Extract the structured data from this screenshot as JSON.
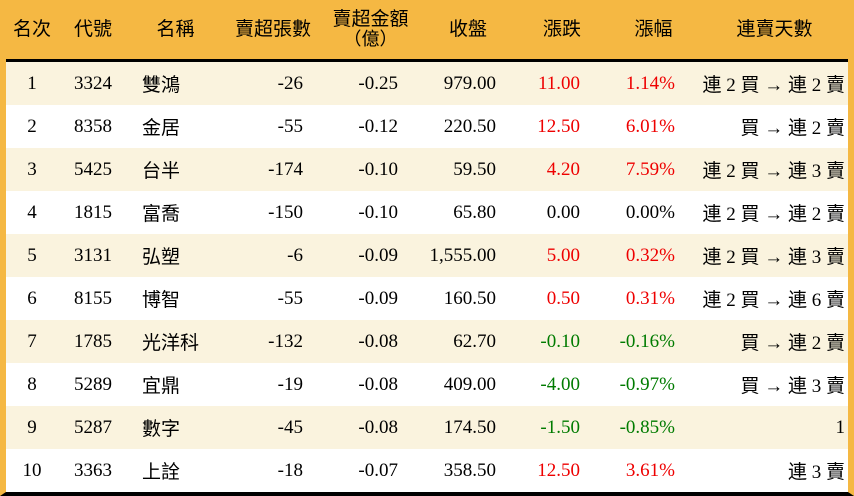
{
  "colors": {
    "header_bg": "#F5B843",
    "row_stripe": "#FAF3DE",
    "row_plain": "#FFFFFF",
    "up": "#EE0000",
    "down": "#007B00",
    "flat": "#000000",
    "rule": "#000000"
  },
  "chart_data": {
    "type": "table",
    "title": "",
    "columns": [
      {
        "label": "名次"
      },
      {
        "label": "代號"
      },
      {
        "label": "名稱"
      },
      {
        "label": "賣超張數"
      },
      {
        "label": "賣超金額",
        "label2": "（億）"
      },
      {
        "label": "收盤"
      },
      {
        "label": "漲跌"
      },
      {
        "label": "漲幅"
      },
      {
        "label": "連賣天數"
      }
    ],
    "rows": [
      {
        "rank": "1",
        "code": "3324",
        "name": "雙鴻",
        "sell_volume": "-26",
        "sell_amount": "-0.25",
        "close": "979.00",
        "change": "11.00",
        "change_pct": "1.14%",
        "streak": "連 2 買 → 連 2 賣",
        "trend": "up"
      },
      {
        "rank": "2",
        "code": "8358",
        "name": "金居",
        "sell_volume": "-55",
        "sell_amount": "-0.12",
        "close": "220.50",
        "change": "12.50",
        "change_pct": "6.01%",
        "streak": "買 → 連 2 賣",
        "trend": "up"
      },
      {
        "rank": "3",
        "code": "5425",
        "name": "台半",
        "sell_volume": "-174",
        "sell_amount": "-0.10",
        "close": "59.50",
        "change": "4.20",
        "change_pct": "7.59%",
        "streak": "連 2 買 → 連 3 賣",
        "trend": "up"
      },
      {
        "rank": "4",
        "code": "1815",
        "name": "富喬",
        "sell_volume": "-150",
        "sell_amount": "-0.10",
        "close": "65.80",
        "change": "0.00",
        "change_pct": "0.00%",
        "streak": "連 2 買 → 連 2 賣",
        "trend": "flat"
      },
      {
        "rank": "5",
        "code": "3131",
        "name": "弘塑",
        "sell_volume": "-6",
        "sell_amount": "-0.09",
        "close": "1,555.00",
        "change": "5.00",
        "change_pct": "0.32%",
        "streak": "連 2 買 → 連 3 賣",
        "trend": "up"
      },
      {
        "rank": "6",
        "code": "8155",
        "name": "博智",
        "sell_volume": "-55",
        "sell_amount": "-0.09",
        "close": "160.50",
        "change": "0.50",
        "change_pct": "0.31%",
        "streak": "連 2 買 → 連 6 賣",
        "trend": "up"
      },
      {
        "rank": "7",
        "code": "1785",
        "name": "光洋科",
        "sell_volume": "-132",
        "sell_amount": "-0.08",
        "close": "62.70",
        "change": "-0.10",
        "change_pct": "-0.16%",
        "streak": "買 → 連 2 賣",
        "trend": "down"
      },
      {
        "rank": "8",
        "code": "5289",
        "name": "宜鼎",
        "sell_volume": "-19",
        "sell_amount": "-0.08",
        "close": "409.00",
        "change": "-4.00",
        "change_pct": "-0.97%",
        "streak": "買 → 連 3 賣",
        "trend": "down"
      },
      {
        "rank": "9",
        "code": "5287",
        "name": "數字",
        "sell_volume": "-45",
        "sell_amount": "-0.08",
        "close": "174.50",
        "change": "-1.50",
        "change_pct": "-0.85%",
        "streak": "1",
        "trend": "down"
      },
      {
        "rank": "10",
        "code": "3363",
        "name": "上詮",
        "sell_volume": "-18",
        "sell_amount": "-0.07",
        "close": "358.50",
        "change": "12.50",
        "change_pct": "3.61%",
        "streak": "連 3 賣",
        "trend": "up"
      }
    ]
  }
}
